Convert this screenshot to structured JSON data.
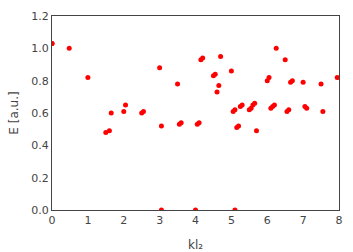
{
  "chart_data": {
    "type": "scatter",
    "x": [
      0.0,
      0.0,
      0.48,
      1.0,
      1.5,
      1.6,
      1.65,
      2.0,
      2.05,
      2.5,
      2.55,
      3.0,
      3.05,
      3.5,
      3.55,
      3.6,
      4.0,
      4.05,
      4.1,
      4.15,
      4.2,
      4.5,
      4.55,
      4.6,
      4.65,
      4.7,
      5.0,
      5.05,
      5.1,
      5.15,
      5.2,
      5.25,
      5.3,
      5.5,
      5.55,
      5.6,
      5.65,
      5.7,
      6.0,
      6.05,
      6.1,
      6.15,
      6.2,
      6.25,
      6.5,
      6.55,
      6.6,
      6.65,
      6.7,
      7.0,
      7.05,
      7.1,
      7.5,
      7.55,
      7.95,
      3.05,
      5.1
    ],
    "values": [
      1.03,
      1.03,
      1.0,
      0.82,
      0.48,
      0.49,
      0.6,
      0.61,
      0.65,
      0.6,
      0.61,
      0.88,
      0.52,
      0.78,
      0.53,
      0.54,
      0.0,
      0.53,
      0.54,
      0.93,
      0.94,
      0.83,
      0.84,
      0.73,
      0.77,
      0.95,
      0.86,
      0.61,
      0.62,
      0.51,
      0.52,
      0.64,
      0.65,
      0.62,
      0.63,
      0.65,
      0.66,
      0.49,
      0.8,
      0.82,
      0.63,
      0.64,
      0.65,
      1.0,
      0.93,
      0.61,
      0.62,
      0.79,
      0.8,
      0.79,
      0.64,
      0.63,
      0.78,
      0.61,
      0.82,
      0.0,
      0.0
    ],
    "color": "#ff0000",
    "marker": "circle",
    "xlabel": "kl₂",
    "ylabel": "E [a.u.]",
    "xlim": [
      0,
      8
    ],
    "ylim": [
      0,
      1.2
    ],
    "xticks": [
      0,
      1,
      2,
      3,
      4,
      5,
      6,
      7,
      8
    ],
    "yticks": [
      {
        "value": 0,
        "label": "0.0"
      },
      0.2,
      0.4,
      0.6,
      0.8,
      {
        "value": 1.0,
        "label": "1.0"
      },
      1.2
    ],
    "grid": false
  }
}
